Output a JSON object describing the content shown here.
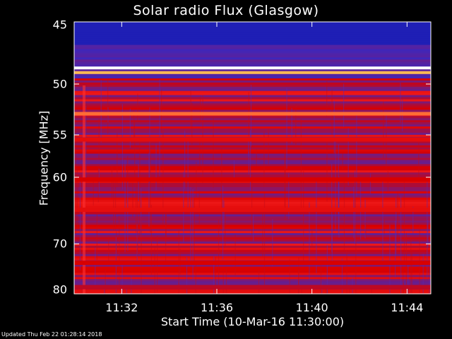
{
  "chart_data": {
    "type": "heatmap",
    "title": "Solar radio Flux (Glasgow)",
    "xlabel": "Start Time (10-Mar-16 11:30:00)",
    "ylabel": "Frequency [MHz]",
    "x_ticks": [
      "11:32",
      "11:36",
      "11:40",
      "11:44"
    ],
    "x_tick_minutes": [
      2,
      6,
      10,
      14
    ],
    "xlim_minutes": [
      0,
      15
    ],
    "y_ticks": [
      45,
      50,
      55,
      60,
      70,
      80
    ],
    "ylim": [
      45,
      80
    ],
    "y_scale": "reciprocal",
    "grid": false,
    "colormap": [
      "#00006e",
      "#2b2bd0",
      "#7a1a78",
      "#d80000",
      "#ff2a2a",
      "#ffb040",
      "#ffffff"
    ],
    "bands": [
      {
        "freq": 48.6,
        "level": 1.0
      },
      {
        "freq": 49.0,
        "level": 0.85
      },
      {
        "freq": 52.8,
        "level": 0.75
      },
      {
        "freq": 55.5,
        "level": 0.55
      },
      {
        "freq": 60.3,
        "level": 0.5
      },
      {
        "freq": 64.5,
        "level": 0.55
      },
      {
        "freq": 73.5,
        "level": 0.5
      },
      {
        "freq": 78.5,
        "level": 0.45
      }
    ],
    "footer": "Updated Thu Feb 22 01:28:14 2018"
  }
}
